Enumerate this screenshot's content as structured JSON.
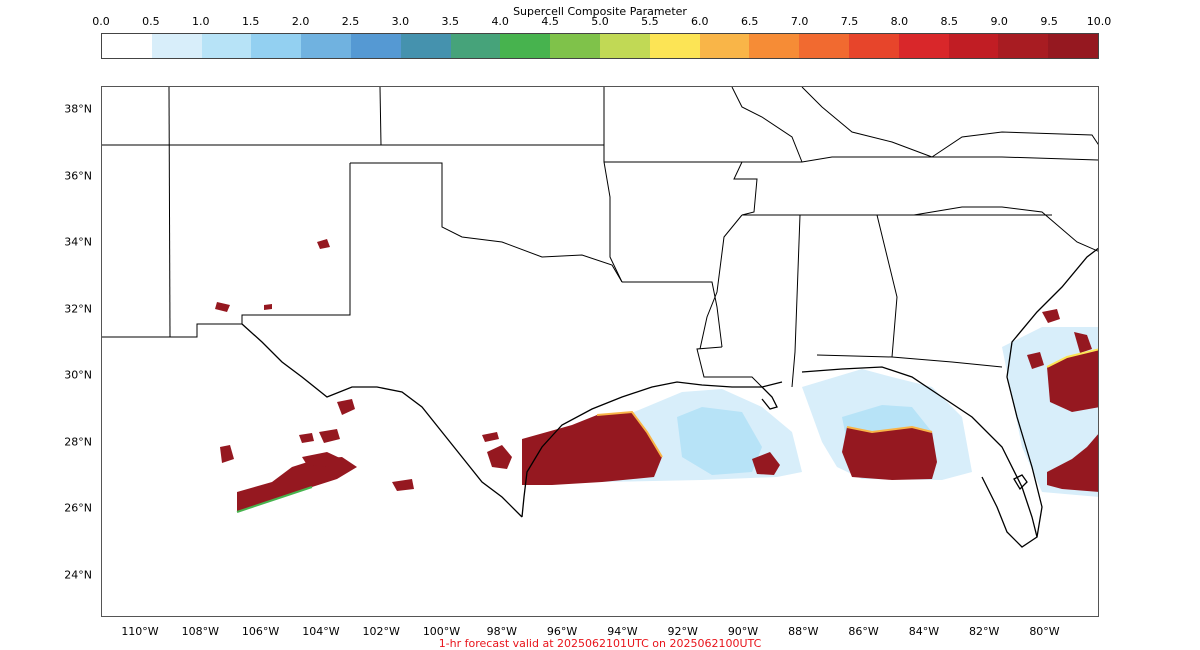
{
  "colorbar": {
    "title": "Supercell Composite Parameter",
    "ticks": [
      "0.0",
      "0.5",
      "1.0",
      "1.5",
      "2.0",
      "2.5",
      "3.0",
      "3.5",
      "4.0",
      "4.5",
      "5.0",
      "5.5",
      "6.0",
      "6.5",
      "7.0",
      "7.5",
      "8.0",
      "8.5",
      "9.0",
      "9.5",
      "10.0"
    ],
    "colors": [
      "#ffffff",
      "#d8eefa",
      "#b7e3f7",
      "#93d0f1",
      "#70b2e0",
      "#5599d3",
      "#4592ae",
      "#46a37a",
      "#47b34e",
      "#7fc24a",
      "#c1d955",
      "#fce455",
      "#f9b548",
      "#f68c36",
      "#f16a30",
      "#e7452b",
      "#d9272a",
      "#c11d24",
      "#a81c22",
      "#951820"
    ]
  },
  "map": {
    "lat_labels": [
      "38°N",
      "36°N",
      "34°N",
      "32°N",
      "30°N",
      "28°N",
      "26°N",
      "24°N"
    ],
    "lon_labels": [
      "110°W",
      "108°W",
      "106°W",
      "104°W",
      "102°W",
      "100°W",
      "98°W",
      "96°W",
      "94°W",
      "92°W",
      "90°W",
      "88°W",
      "86°W",
      "84°W",
      "82°W",
      "80°W"
    ]
  },
  "footer": "1-hr forecast valid at 2025062101UTC on 2025062100UTC"
}
